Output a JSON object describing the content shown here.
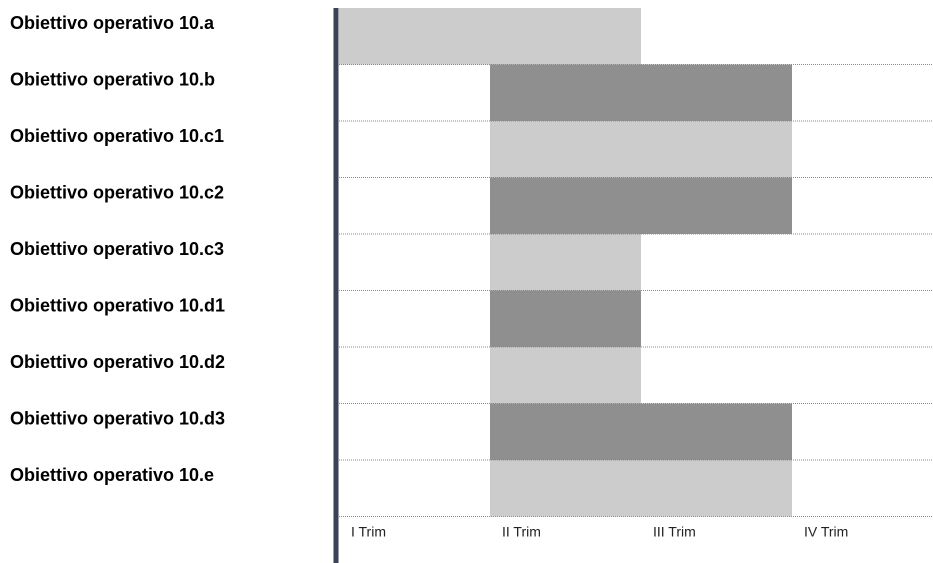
{
  "chart_data": {
    "type": "bar",
    "subtype": "gantt",
    "title": "",
    "xlabel": "",
    "ylabel": "",
    "periods": [
      "I Trim",
      "II Trim",
      "III Trim",
      "IV Trim"
    ],
    "tasks": [
      {
        "label": "Obiettivo operativo 10.a",
        "start": 1,
        "end": 2,
        "color": "#cccccc"
      },
      {
        "label": "Obiettivo operativo 10.b",
        "start": 2,
        "end": 3,
        "color": "#8f8f8f"
      },
      {
        "label": "Obiettivo operativo 10.c1",
        "start": 2,
        "end": 3,
        "color": "#cccccc"
      },
      {
        "label": "Obiettivo operativo 10.c2",
        "start": 2,
        "end": 3,
        "color": "#8f8f8f"
      },
      {
        "label": "Obiettivo operativo 10.c3",
        "start": 2,
        "end": 2,
        "color": "#cccccc"
      },
      {
        "label": "Obiettivo operativo 10.d1",
        "start": 2,
        "end": 2,
        "color": "#8f8f8f"
      },
      {
        "label": "Obiettivo operativo 10.d2",
        "start": 2,
        "end": 2,
        "color": "#cccccc"
      },
      {
        "label": "Obiettivo operativo 10.d3",
        "start": 2,
        "end": 3,
        "color": "#8f8f8f"
      },
      {
        "label": "Obiettivo operativo 10.e",
        "start": 2,
        "end": 3,
        "color": "#cccccc"
      }
    ],
    "grid": true,
    "legend": "none",
    "colors": {
      "axis": "#3b4254",
      "light_bar": "#cccccc",
      "dark_bar": "#8f8f8f",
      "gridline": "#8a8a8a"
    }
  }
}
